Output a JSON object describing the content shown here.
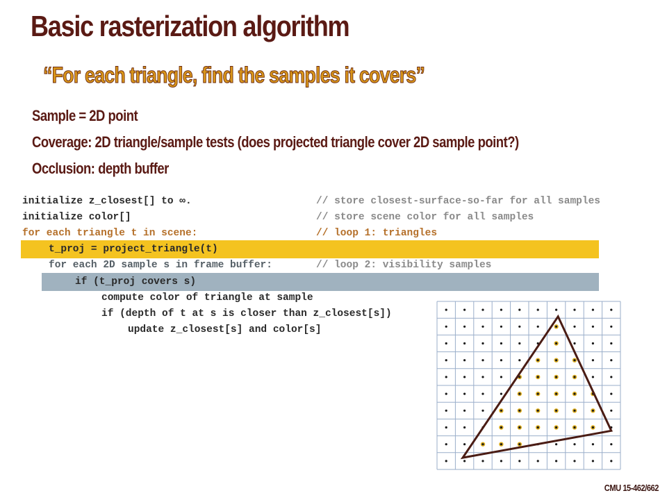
{
  "title": "Basic rasterization algorithm",
  "quote": "“For each triangle, find the samples it covers”",
  "bullets": [
    "Sample = 2D point",
    "Coverage: 2D triangle/sample tests  (does projected triangle cover 2D sample point?)",
    "Occlusion: depth buffer"
  ],
  "code": {
    "lines": [
      {
        "text": "initialize z_closest[] to ∞.",
        "comment": "// store closest-surface-so-far for all samples"
      },
      {
        "text": "initialize color[]",
        "comment": "// store scene color for all samples"
      },
      {
        "text": "for each triangle t in scene:",
        "comment": "// loop 1: triangles"
      },
      {
        "text": "t_proj = project_triangle(t)",
        "comment": ""
      },
      {
        "text": "for each 2D sample s in frame buffer:",
        "comment": "// loop 2: visibility samples"
      },
      {
        "text": "if (t_proj covers s)",
        "comment": ""
      },
      {
        "text": "compute color of triangle at sample",
        "comment": ""
      },
      {
        "text": "if (depth of t at s is closer than z_closest[s])",
        "comment": ""
      },
      {
        "text": "update z_closest[s] and color[s]",
        "comment": ""
      }
    ]
  },
  "diagram": {
    "grid_columns": 10,
    "grid_rows": 10,
    "triangle_vertices": [
      [
        6.6,
        0.9
      ],
      [
        1.4,
        9.3
      ],
      [
        9.5,
        7.7
      ]
    ],
    "colors": {
      "grid_line": "#9aaeca",
      "sample_dot": "#1a1a1a",
      "covered_fill": "#e0b020",
      "triangle_stroke": "#4a1c14"
    }
  },
  "footer": "CMU 15-462/662",
  "colors": {
    "title": "#5a1a14",
    "quote_fill": "#d9961a",
    "highlight_yellow": "#f4c320",
    "highlight_gray": "#a0b2bf",
    "code_brown": "#b5702a",
    "comment_gray": "#8a8a8a"
  }
}
